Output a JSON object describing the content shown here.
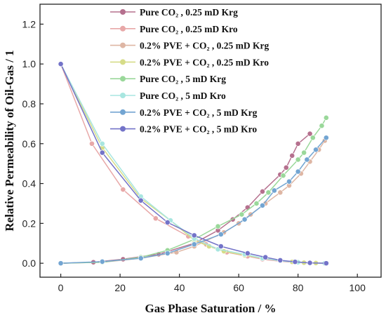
{
  "chart_data": {
    "type": "line",
    "xlabel": "Gas Phase Saturation / %",
    "ylabel": "Relative Permeability of Oil-Gas / 1",
    "xlim": [
      -7,
      108
    ],
    "ylim": [
      -0.07,
      1.3
    ],
    "xticks": [
      0,
      20,
      40,
      60,
      80,
      100
    ],
    "yticks": [
      0.0,
      0.2,
      0.4,
      0.6,
      0.8,
      1.0,
      1.2
    ],
    "xtick_labels": [
      "0",
      "20",
      "40",
      "60",
      "80",
      "100"
    ],
    "ytick_labels": [
      "0.0",
      "0.2",
      "0.4",
      "0.6",
      "0.8",
      "1.0",
      "1.2"
    ],
    "grid": false,
    "legend_position": "top-center",
    "series": [
      {
        "name": "Pure CO₂ , 0.25 mD Krg",
        "color": "#b5708e",
        "x": [
          0,
          11,
          21,
          33,
          45,
          53,
          58,
          63,
          68,
          74,
          76,
          78,
          80,
          84
        ],
        "y": [
          0,
          0.005,
          0.02,
          0.045,
          0.1,
          0.165,
          0.22,
          0.28,
          0.36,
          0.445,
          0.48,
          0.54,
          0.6,
          0.65
        ]
      },
      {
        "name": "Pure CO₂ , 0.25 mD Kro",
        "color": "#e8a8a8",
        "x": [
          0,
          10.5,
          21,
          32,
          43,
          49,
          56,
          63,
          68,
          74,
          78,
          82,
          86,
          89
        ],
        "y": [
          1.0,
          0.6,
          0.37,
          0.225,
          0.135,
          0.095,
          0.055,
          0.035,
          0.02,
          0.01,
          0.005,
          0.002,
          0.001,
          0
        ]
      },
      {
        "name": "0.2% PVE + CO₂ , 0.25 mD Krg",
        "color": "#deb6a4",
        "x": [
          0,
          14,
          27,
          39,
          45,
          55,
          60,
          64,
          69,
          74,
          77,
          81,
          84,
          87,
          89
        ],
        "y": [
          0,
          0.005,
          0.025,
          0.055,
          0.085,
          0.155,
          0.2,
          0.245,
          0.3,
          0.355,
          0.39,
          0.45,
          0.51,
          0.57,
          0.615
        ]
      },
      {
        "name": "0.2% PVE + CO₂ , 0.25 mD Kro",
        "color": "#d6dc88",
        "x": [
          0,
          14,
          27,
          37,
          45,
          50,
          55,
          62,
          68,
          74,
          78,
          82,
          86,
          89
        ],
        "y": [
          1.0,
          0.58,
          0.325,
          0.215,
          0.115,
          0.085,
          0.06,
          0.04,
          0.025,
          0.013,
          0.007,
          0.003,
          0.001,
          0
        ]
      },
      {
        "name": "Pure CO₂ , 5 mD Krg",
        "color": "#9ad89a",
        "x": [
          0,
          14,
          27,
          36,
          45,
          53,
          61,
          66,
          70,
          75,
          80,
          82,
          85,
          88,
          89.5
        ],
        "y": [
          0,
          0.005,
          0.03,
          0.065,
          0.12,
          0.185,
          0.245,
          0.3,
          0.355,
          0.44,
          0.52,
          0.555,
          0.63,
          0.69,
          0.73
        ]
      },
      {
        "name": "Pure CO₂ , 5 mD Kro",
        "color": "#a8e6e0",
        "x": [
          0,
          14,
          27,
          37,
          45,
          53,
          62,
          68,
          74,
          80,
          84,
          89
        ],
        "y": [
          1.0,
          0.6,
          0.335,
          0.215,
          0.125,
          0.07,
          0.045,
          0.025,
          0.012,
          0.005,
          0.002,
          0
        ]
      },
      {
        "name": "0.2% PVE + CO₂ , 5 mD Krg",
        "color": "#73a5d2",
        "x": [
          0,
          14,
          27,
          36,
          45,
          54,
          62,
          68,
          72,
          77,
          80,
          83,
          86,
          89.5
        ],
        "y": [
          0,
          0.008,
          0.025,
          0.05,
          0.095,
          0.145,
          0.22,
          0.29,
          0.365,
          0.41,
          0.46,
          0.52,
          0.57,
          0.63
        ]
      },
      {
        "name": "0.2% PVE + CO₂ , 5 mD Kro",
        "color": "#7373c8",
        "x": [
          0,
          14,
          27,
          36,
          45,
          54,
          63,
          69,
          74,
          79,
          84,
          89.5
        ],
        "y": [
          1.0,
          0.555,
          0.315,
          0.205,
          0.14,
          0.085,
          0.05,
          0.03,
          0.015,
          0.007,
          0.002,
          0
        ]
      }
    ]
  }
}
